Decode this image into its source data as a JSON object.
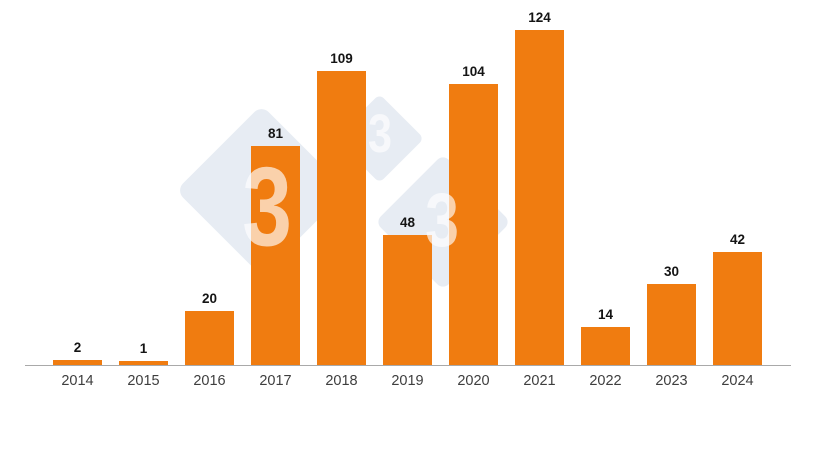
{
  "chart_data": {
    "type": "bar",
    "categories": [
      "2014",
      "2015",
      "2016",
      "2017",
      "2018",
      "2019",
      "2020",
      "2021",
      "2022",
      "2023",
      "2024"
    ],
    "values": [
      2,
      1,
      20,
      81,
      109,
      48,
      104,
      124,
      14,
      30,
      42
    ],
    "title": "",
    "xlabel": "",
    "ylabel": "",
    "ylim": [
      0,
      130
    ],
    "grid": false,
    "legend": "none",
    "value_labels_shown": true,
    "bar_color": "#F07C10"
  },
  "watermark": {
    "glyphs": [
      "3",
      "3",
      "3"
    ]
  },
  "colors": {
    "bar": "#F07C10",
    "value_label": "#141414",
    "tick_label": "#3E3E3E",
    "axis_line": "#A9A9A9",
    "watermark_diamond": "#E7ECF3",
    "background": "#FFFFFF"
  }
}
